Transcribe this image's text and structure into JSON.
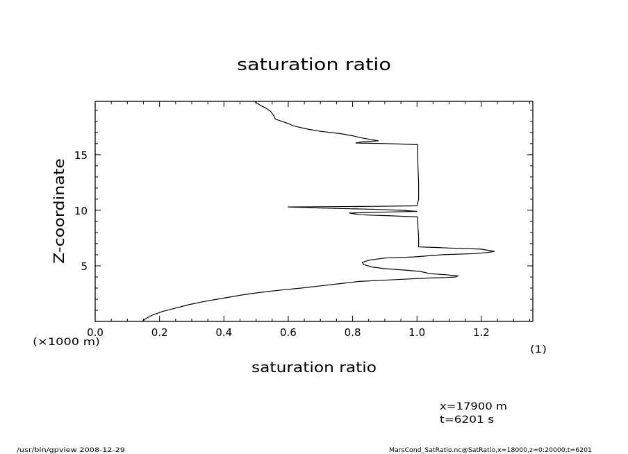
{
  "chart_data": {
    "type": "line",
    "title": "saturation ratio",
    "xlabel": "saturation ratio",
    "ylabel": "Z-coordinate",
    "x_unit": "(1)",
    "y_unit": "(×1000 m)",
    "xlim": [
      0.0,
      1.36
    ],
    "ylim": [
      0.0,
      19.8
    ],
    "x_ticks": [
      0.0,
      0.2,
      0.4,
      0.6,
      0.8,
      1.0,
      1.2
    ],
    "x_tick_labels": [
      "0.0",
      "0.2",
      "0.4",
      "0.6",
      "0.8",
      "1.0",
      "1.2"
    ],
    "y_ticks": [
      5,
      10,
      15
    ],
    "y_tick_labels": [
      "5",
      "10",
      "15"
    ],
    "grid": false,
    "series": [
      {
        "points": [
          [
            0.146,
            0.0
          ],
          [
            0.16,
            0.3
          ],
          [
            0.18,
            0.6
          ],
          [
            0.21,
            0.9
          ],
          [
            0.25,
            1.2
          ],
          [
            0.29,
            1.5
          ],
          [
            0.34,
            1.8
          ],
          [
            0.4,
            2.1
          ],
          [
            0.46,
            2.4
          ],
          [
            0.51,
            2.6
          ],
          [
            0.57,
            2.8
          ],
          [
            0.64,
            3.0
          ],
          [
            0.7,
            3.2
          ],
          [
            0.76,
            3.4
          ],
          [
            0.82,
            3.6
          ],
          [
            0.89,
            3.7
          ],
          [
            0.96,
            3.8
          ],
          [
            1.03,
            3.9
          ],
          [
            1.09,
            3.95
          ],
          [
            1.12,
            4.0
          ],
          [
            1.128,
            4.1
          ],
          [
            1.09,
            4.2
          ],
          [
            1.04,
            4.3
          ],
          [
            1.01,
            4.5
          ],
          [
            0.97,
            4.6
          ],
          [
            0.9,
            4.75
          ],
          [
            0.86,
            4.9
          ],
          [
            0.835,
            5.1
          ],
          [
            0.83,
            5.3
          ],
          [
            0.85,
            5.5
          ],
          [
            0.9,
            5.7
          ],
          [
            0.99,
            5.8
          ],
          [
            1.08,
            6.0
          ],
          [
            1.18,
            6.1
          ],
          [
            1.22,
            6.2
          ],
          [
            1.24,
            6.3
          ],
          [
            1.2,
            6.5
          ],
          [
            1.1,
            6.6
          ],
          [
            1.06,
            6.65
          ],
          [
            1.005,
            6.7
          ],
          [
            1.005,
            7.5
          ],
          [
            1.003,
            8.5
          ],
          [
            1.002,
            9.4
          ],
          [
            0.92,
            9.5
          ],
          [
            0.82,
            9.6
          ],
          [
            0.79,
            9.75
          ],
          [
            0.92,
            9.85
          ],
          [
            1.0,
            9.9
          ],
          [
            0.95,
            10.0
          ],
          [
            0.85,
            10.1
          ],
          [
            0.7,
            10.2
          ],
          [
            0.6,
            10.3
          ],
          [
            0.7,
            10.32
          ],
          [
            0.85,
            10.35
          ],
          [
            1.0,
            10.4
          ],
          [
            1.005,
            11.0
          ],
          [
            1.005,
            12.5
          ],
          [
            1.003,
            14.0
          ],
          [
            1.002,
            15.2
          ],
          [
            1.002,
            15.9
          ],
          [
            0.96,
            15.95
          ],
          [
            0.9,
            16.0
          ],
          [
            0.81,
            16.05
          ],
          [
            0.83,
            16.15
          ],
          [
            0.88,
            16.25
          ],
          [
            0.86,
            16.35
          ],
          [
            0.83,
            16.5
          ],
          [
            0.8,
            16.7
          ],
          [
            0.76,
            16.9
          ],
          [
            0.7,
            17.1
          ],
          [
            0.66,
            17.3
          ],
          [
            0.63,
            17.5
          ],
          [
            0.615,
            17.6
          ],
          [
            0.6,
            17.8
          ],
          [
            0.58,
            18.0
          ],
          [
            0.56,
            18.2
          ],
          [
            0.555,
            18.5
          ],
          [
            0.545,
            18.9
          ],
          [
            0.53,
            19.2
          ],
          [
            0.51,
            19.5
          ],
          [
            0.497,
            19.75
          ]
        ]
      }
    ]
  },
  "annotations": {
    "x_position": "x=17900  m",
    "t_position": "t=6201  s",
    "footer_left": "/usr/bin/gpview   2008-12-29",
    "footer_right": "MarsCond_SatRatio.nc@SatRatio,x=18000,z=0:20000,t=6201"
  }
}
